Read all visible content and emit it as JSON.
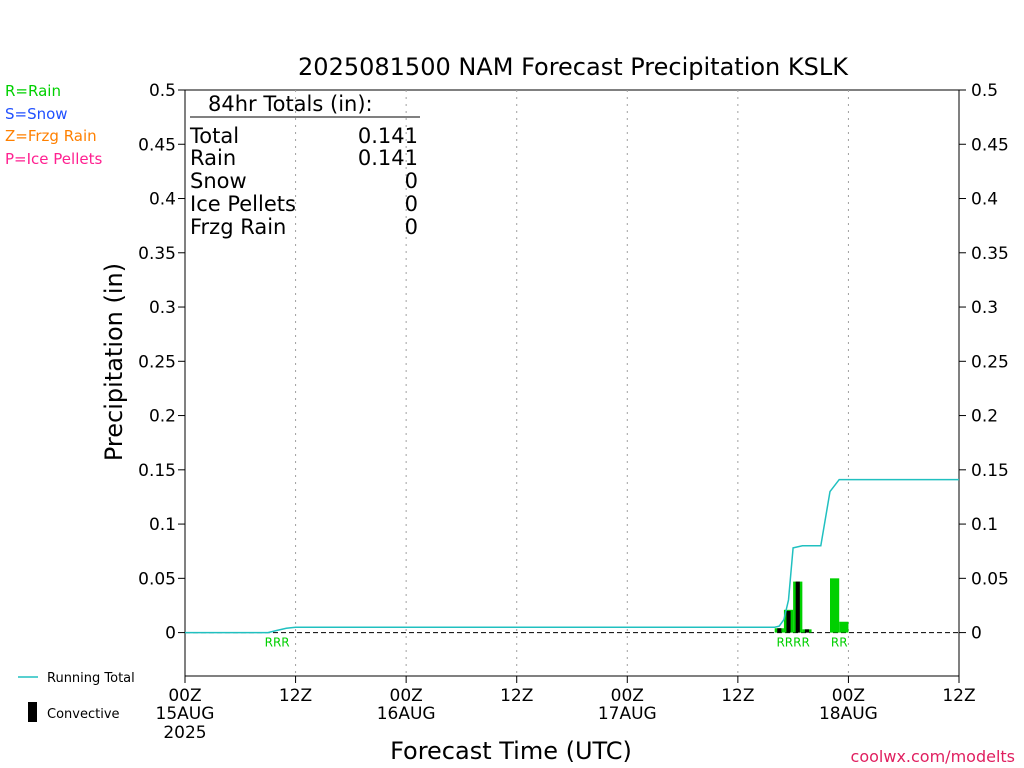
{
  "chart_data": {
    "type": "bar",
    "title": "2025081500 NAM Forecast Precipitation KSLK",
    "xlabel": "Forecast Time (UTC)",
    "ylabel": "Precipitation (in)",
    "ylim": [
      -0.04,
      0.5
    ],
    "y_ticks": [
      "0",
      "0.05",
      "0.1",
      "0.15",
      "0.2",
      "0.25",
      "0.3",
      "0.35",
      "0.4",
      "0.45",
      "0.5"
    ],
    "y_tick_values": [
      0,
      0.05,
      0.1,
      0.15,
      0.2,
      0.25,
      0.3,
      0.35,
      0.4,
      0.45,
      0.5
    ],
    "xlim_hours": [
      0,
      84
    ],
    "x_ticks": [
      {
        "hour": 0,
        "label": "00Z",
        "sub": "15AUG",
        "sub2": "2025"
      },
      {
        "hour": 12,
        "label": "12Z",
        "sub": "",
        "sub2": ""
      },
      {
        "hour": 24,
        "label": "00Z",
        "sub": "16AUG",
        "sub2": ""
      },
      {
        "hour": 36,
        "label": "12Z",
        "sub": "",
        "sub2": ""
      },
      {
        "hour": 48,
        "label": "00Z",
        "sub": "17AUG",
        "sub2": ""
      },
      {
        "hour": 60,
        "label": "12Z",
        "sub": "",
        "sub2": ""
      },
      {
        "hour": 72,
        "label": "00Z",
        "sub": "18AUG",
        "sub2": ""
      },
      {
        "hour": 84,
        "label": "12Z",
        "sub": "",
        "sub2": ""
      }
    ],
    "series": [
      {
        "name": "Running Total",
        "color": "#20c0c0",
        "x": [
          0,
          9,
          10,
          11,
          12,
          64,
          64.5,
          65,
          65.5,
          66,
          67,
          68,
          69,
          70,
          71,
          72,
          84
        ],
        "values": [
          0,
          0,
          0.002,
          0.004,
          0.005,
          0.005,
          0.006,
          0.012,
          0.03,
          0.078,
          0.08,
          0.08,
          0.08,
          0.13,
          0.141,
          0.141,
          0.141
        ]
      },
      {
        "name": "Precipitation",
        "color": "#00d000",
        "x": [
          64.5,
          65.5,
          66.5,
          67.5,
          70.5,
          71.5
        ],
        "values": [
          0.004,
          0.021,
          0.047,
          0.003,
          0.05,
          0.01
        ]
      },
      {
        "name": "Convective",
        "color": "#000000",
        "x": [
          64.5,
          65.5,
          66.5,
          67.5
        ],
        "values": [
          0.004,
          0.02,
          0.047,
          0.003
        ]
      }
    ],
    "precip_type_markers": [
      {
        "x": 10,
        "text": "RRR"
      },
      {
        "x": 66,
        "text": "RRRR"
      },
      {
        "x": 71,
        "text": "RR"
      }
    ],
    "grid": "vertical dotted"
  },
  "totals_box": {
    "heading": "84hr Totals (in):",
    "rows": [
      {
        "label": "Total",
        "value": "0.141"
      },
      {
        "label": "Rain",
        "value": "0.141"
      },
      {
        "label": "Snow",
        "value": "0"
      },
      {
        "label": "Ice Pellets",
        "value": "0"
      },
      {
        "label": "Frzg Rain",
        "value": "0"
      }
    ]
  },
  "type_legend": [
    {
      "text": "R=Rain",
      "color": "#00d000"
    },
    {
      "text": "S=Snow",
      "color": "#2050ff"
    },
    {
      "text": "Z=Frzg Rain",
      "color": "#ff8000"
    },
    {
      "text": "P=Ice Pellets",
      "color": "#ff2090"
    }
  ],
  "bottom_legend": {
    "running_total": "Running Total",
    "convective": "Convective"
  },
  "credit": "coolwx.com/modelts",
  "colors": {
    "credit": "#e02060",
    "axis": "#000000",
    "grid": "#a0a0a0"
  }
}
